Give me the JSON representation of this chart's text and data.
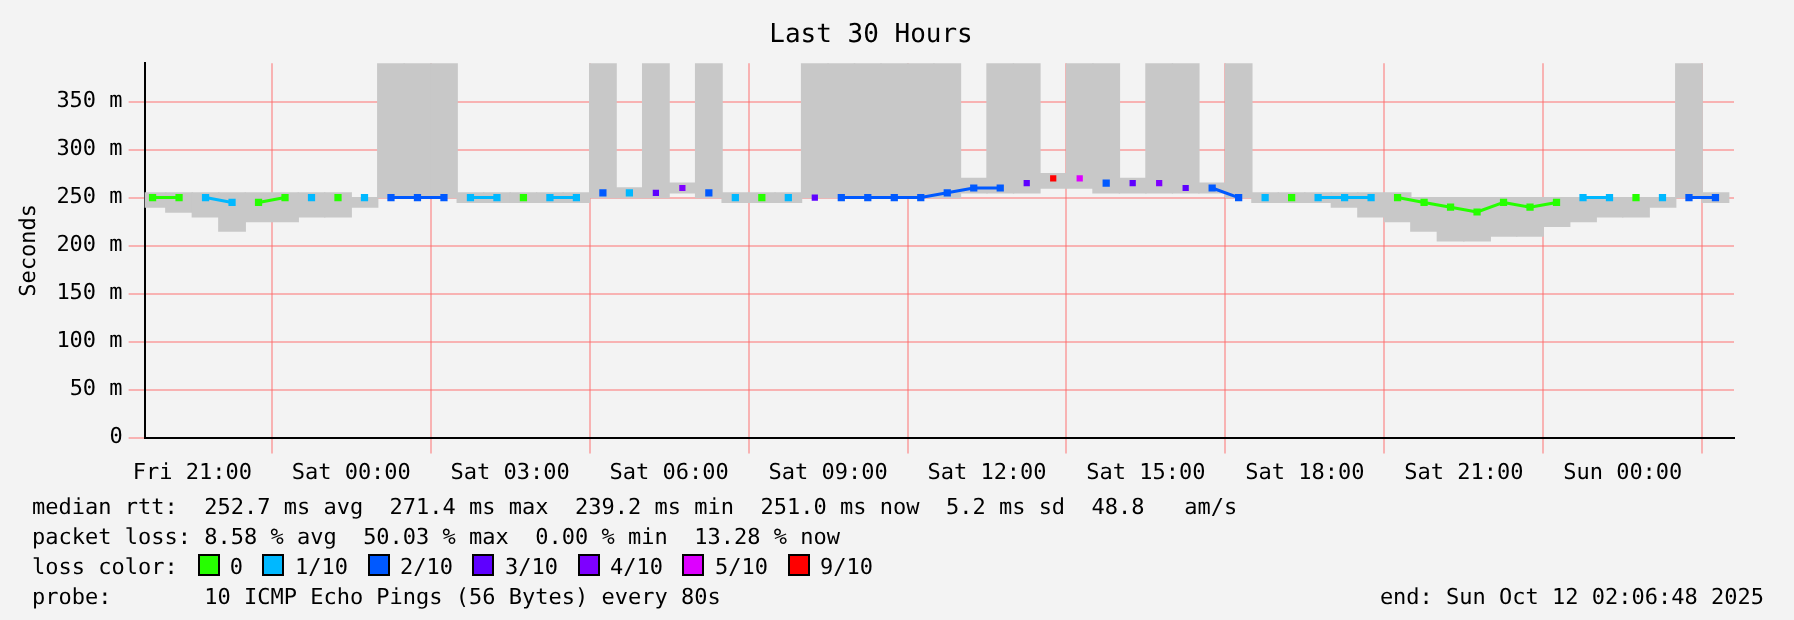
{
  "chart_data": {
    "type": "bar",
    "title": "Last 30 Hours",
    "ylabel": "Seconds",
    "x": [
      "2025-10-10T20:15",
      "2025-10-10T20:45",
      "2025-10-10T21:15",
      "2025-10-10T21:45",
      "2025-10-10T22:15",
      "2025-10-10T22:45",
      "2025-10-10T23:15",
      "2025-10-10T23:45",
      "2025-10-11T00:15",
      "2025-10-11T00:45",
      "2025-10-11T01:15",
      "2025-10-11T01:45",
      "2025-10-11T02:15",
      "2025-10-11T02:45",
      "2025-10-11T03:15",
      "2025-10-11T03:45",
      "2025-10-11T04:15",
      "2025-10-11T04:45",
      "2025-10-11T05:15",
      "2025-10-11T05:45",
      "2025-10-11T06:15",
      "2025-10-11T06:45",
      "2025-10-11T07:15",
      "2025-10-11T07:45",
      "2025-10-11T08:15",
      "2025-10-11T08:45",
      "2025-10-11T09:15",
      "2025-10-11T09:45",
      "2025-10-11T10:15",
      "2025-10-11T10:45",
      "2025-10-11T11:15",
      "2025-10-11T11:45",
      "2025-10-11T12:15",
      "2025-10-11T12:45",
      "2025-10-11T13:15",
      "2025-10-11T13:45",
      "2025-10-11T14:15",
      "2025-10-11T14:45",
      "2025-10-11T15:15",
      "2025-10-11T15:45",
      "2025-10-11T16:15",
      "2025-10-11T16:45",
      "2025-10-11T17:15",
      "2025-10-11T17:45",
      "2025-10-11T18:15",
      "2025-10-11T18:45",
      "2025-10-11T19:15",
      "2025-10-11T19:45",
      "2025-10-11T20:15",
      "2025-10-11T20:45",
      "2025-10-11T21:15",
      "2025-10-11T21:45",
      "2025-10-11T22:15",
      "2025-10-11T22:45",
      "2025-10-11T23:15",
      "2025-10-11T23:45",
      "2025-10-12T00:15",
      "2025-10-12T00:45",
      "2025-10-12T01:15",
      "2025-10-12T01:45"
    ],
    "series": [
      {
        "color": "#c8c8c8",
        "base": [
          240,
          235,
          230,
          215,
          225,
          225,
          230,
          230,
          240,
          250,
          250,
          250,
          245,
          245,
          245,
          245,
          245,
          250,
          250,
          250,
          255,
          250,
          245,
          245,
          245,
          250,
          250,
          250,
          250,
          250,
          250,
          255,
          255,
          255,
          260,
          260,
          255,
          255,
          255,
          255,
          255,
          250,
          245,
          245,
          245,
          240,
          230,
          225,
          215,
          205,
          205,
          210,
          210,
          220,
          225,
          230,
          230,
          240,
          250,
          245
        ],
        "values": [
          15,
          20,
          25,
          40,
          30,
          30,
          25,
          25,
          10,
          140,
          140,
          140,
          10,
          10,
          10,
          10,
          10,
          140,
          10,
          140,
          10,
          140,
          10,
          10,
          10,
          140,
          140,
          140,
          140,
          140,
          140,
          15,
          135,
          135,
          15,
          130,
          135,
          15,
          135,
          135,
          10,
          140,
          10,
          10,
          10,
          15,
          25,
          30,
          35,
          45,
          45,
          40,
          40,
          30,
          25,
          20,
          20,
          10,
          140,
          10
        ]
      },
      {
        "type": "line",
        "name": "0",
        "color": "#26ff00",
        "values": [
          250,
          250,
          null,
          null,
          245,
          250,
          null,
          250,
          null,
          null,
          null,
          null,
          null,
          null,
          250,
          null,
          null,
          null,
          null,
          null,
          null,
          null,
          null,
          250,
          null,
          null,
          null,
          null,
          null,
          null,
          null,
          null,
          null,
          null,
          null,
          null,
          null,
          null,
          null,
          null,
          null,
          null,
          null,
          250,
          null,
          null,
          null,
          250,
          245,
          240,
          235,
          245,
          240,
          245,
          null,
          null,
          250,
          null,
          null,
          null
        ]
      },
      {
        "type": "line",
        "name": "1/10",
        "color": "#00b8ff",
        "values": [
          null,
          null,
          250,
          245,
          null,
          null,
          250,
          null,
          250,
          null,
          null,
          null,
          250,
          250,
          null,
          250,
          250,
          null,
          255,
          null,
          null,
          null,
          250,
          null,
          250,
          null,
          null,
          null,
          null,
          null,
          null,
          null,
          null,
          null,
          null,
          null,
          null,
          null,
          null,
          null,
          null,
          null,
          250,
          null,
          250,
          250,
          250,
          null,
          null,
          null,
          null,
          null,
          null,
          null,
          250,
          250,
          null,
          250,
          null,
          null
        ]
      },
      {
        "type": "line",
        "name": "2/10",
        "color": "#0059ff",
        "values": [
          null,
          null,
          null,
          null,
          null,
          null,
          null,
          null,
          null,
          250,
          250,
          250,
          null,
          null,
          null,
          null,
          null,
          255,
          null,
          null,
          null,
          255,
          null,
          null,
          null,
          null,
          250,
          250,
          250,
          250,
          255,
          260,
          260,
          null,
          null,
          null,
          265,
          null,
          null,
          null,
          260,
          250,
          null,
          null,
          null,
          null,
          null,
          null,
          null,
          null,
          null,
          null,
          null,
          null,
          null,
          null,
          null,
          null,
          250,
          250
        ]
      },
      {
        "type": "scatter",
        "name": "3/10",
        "color": "#5e00ff",
        "values": [
          null,
          null,
          null,
          null,
          null,
          null,
          null,
          null,
          null,
          null,
          null,
          null,
          null,
          null,
          null,
          null,
          null,
          null,
          null,
          255,
          null,
          null,
          null,
          null,
          null,
          250,
          null,
          null,
          null,
          null,
          null,
          null,
          null,
          265,
          null,
          null,
          null,
          265,
          null,
          260,
          null,
          null,
          null,
          null,
          null,
          null,
          null,
          null,
          null,
          null,
          null,
          null,
          null,
          null,
          null,
          null,
          null,
          null,
          null,
          null
        ]
      },
      {
        "type": "scatter",
        "name": "4/10",
        "color": "#7e00ff",
        "values": [
          null,
          null,
          null,
          null,
          null,
          null,
          null,
          null,
          null,
          null,
          null,
          null,
          null,
          null,
          null,
          null,
          null,
          null,
          null,
          null,
          260,
          null,
          null,
          null,
          null,
          null,
          null,
          null,
          null,
          null,
          null,
          null,
          null,
          null,
          null,
          null,
          null,
          null,
          265,
          null,
          null,
          null,
          null,
          null,
          null,
          null,
          null,
          null,
          null,
          null,
          null,
          null,
          null,
          null,
          null,
          null,
          null,
          null,
          null,
          null
        ]
      },
      {
        "type": "scatter",
        "name": "5/10",
        "color": "#dd00ff",
        "values": [
          null,
          null,
          null,
          null,
          null,
          null,
          null,
          null,
          null,
          null,
          null,
          null,
          null,
          null,
          null,
          null,
          null,
          null,
          null,
          null,
          null,
          null,
          null,
          null,
          null,
          null,
          null,
          null,
          null,
          null,
          null,
          null,
          null,
          null,
          null,
          270,
          null,
          null,
          null,
          null,
          null,
          null,
          null,
          null,
          null,
          null,
          null,
          null,
          null,
          null,
          null,
          null,
          null,
          null,
          null,
          null,
          null,
          null,
          null,
          null
        ]
      },
      {
        "type": "scatter",
        "name": "9/10",
        "color": "#ff0000",
        "values": [
          null,
          null,
          null,
          null,
          null,
          null,
          null,
          null,
          null,
          null,
          null,
          null,
          null,
          null,
          null,
          null,
          null,
          null,
          null,
          null,
          null,
          null,
          null,
          null,
          null,
          null,
          null,
          null,
          null,
          null,
          null,
          null,
          null,
          null,
          270,
          null,
          null,
          null,
          null,
          null,
          null,
          null,
          null,
          null,
          null,
          null,
          null,
          null,
          null,
          null,
          null,
          null,
          null,
          null,
          null,
          null,
          null,
          null,
          null,
          null
        ]
      }
    ],
    "xlim": [
      "2025-10-10T20:06",
      "2025-10-12T02:06"
    ],
    "xticks": [
      {
        "value": "2025-10-10T21:00",
        "label": "Fri 21:00"
      },
      {
        "value": "2025-10-11T00:00",
        "label": "Sat 00:00"
      },
      {
        "value": "2025-10-11T03:00",
        "label": "Sat 03:00"
      },
      {
        "value": "2025-10-11T06:00",
        "label": "Sat 06:00"
      },
      {
        "value": "2025-10-11T09:00",
        "label": "Sat 09:00"
      },
      {
        "value": "2025-10-11T12:00",
        "label": "Sat 12:00"
      },
      {
        "value": "2025-10-11T15:00",
        "label": "Sat 15:00"
      },
      {
        "value": "2025-10-11T18:00",
        "label": "Sat 18:00"
      },
      {
        "value": "2025-10-11T21:00",
        "label": "Sat 21:00"
      },
      {
        "value": "2025-10-12T00:00",
        "label": "Sun 00:00"
      }
    ],
    "ylim": [
      0,
      390
    ],
    "yticks": [
      0,
      {
        "value": 50,
        "label": "50 m"
      },
      {
        "value": 100,
        "label": "100 m"
      },
      {
        "value": 150,
        "label": "150 m"
      },
      {
        "value": 200,
        "label": "200 m"
      },
      {
        "value": 250,
        "label": "250 m"
      },
      {
        "value": 300,
        "label": "300 m"
      },
      {
        "value": 350,
        "label": "350 m"
      }
    ],
    "grid": true,
    "marker": "square",
    "legend": "bottom",
    "legend_title": "loss color:",
    "annotations": [
      "median rtt:  252.7 ms avg  271.4 ms max  239.2 ms min  251.0 ms now  5.2 ms sd  48.8   am/s",
      "packet loss: 8.58 % avg  50.03 % max  0.00 % min  13.28 % now",
      "probe:       10 ICMP Echo Pings (56 Bytes) every 80s",
      "end: Sun Oct 12 02:06:48 2025"
    ]
  }
}
